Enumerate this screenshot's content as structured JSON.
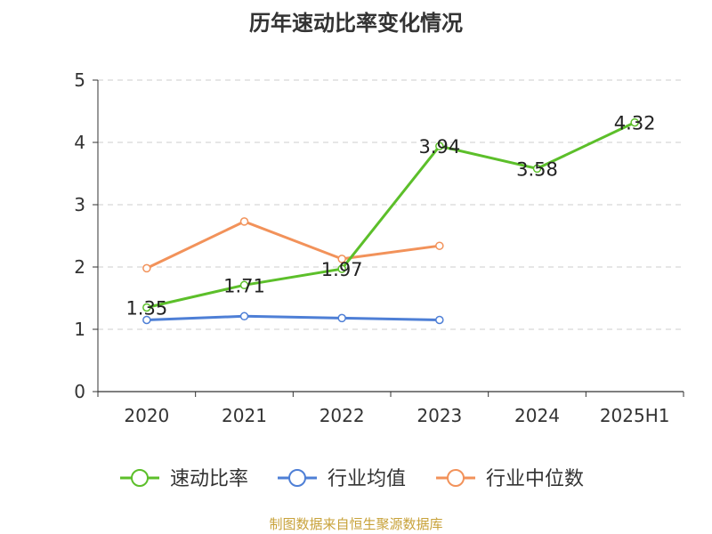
{
  "title": "历年速动比率变化情况",
  "source": "制图数据来自恒生聚源数据库",
  "colors": {
    "速动比率": "#5cbf2a",
    "行业均值": "#4e7fd6",
    "行业中位数": "#f2925a",
    "axis": "#333333",
    "grid": "#cccccc"
  },
  "chart_data": {
    "type": "line",
    "categories": [
      "2020",
      "2021",
      "2022",
      "2023",
      "2024",
      "2025H1"
    ],
    "ylim": [
      0,
      5
    ],
    "yticks": [
      0,
      1,
      2,
      3,
      4,
      5
    ],
    "grid": true,
    "legend_position": "bottom",
    "series": [
      {
        "name": "速动比率",
        "values": [
          1.35,
          1.71,
          1.97,
          3.94,
          3.58,
          4.32
        ],
        "show_labels": true
      },
      {
        "name": "行业均值",
        "values": [
          1.15,
          1.21,
          1.18,
          1.15,
          null,
          null
        ],
        "show_labels": false
      },
      {
        "name": "行业中位数",
        "values": [
          1.98,
          2.73,
          2.13,
          2.34,
          null,
          null
        ],
        "show_labels": false
      }
    ]
  }
}
